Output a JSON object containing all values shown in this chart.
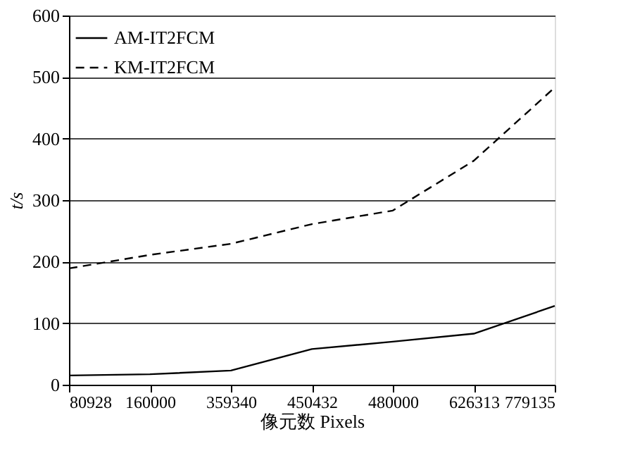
{
  "chart_data": {
    "type": "line",
    "xlabel": "像元数 Pixels",
    "ylabel": "t/s",
    "categories": [
      "80928",
      "160000",
      "359340",
      "450432",
      "480000",
      "626313",
      "779135"
    ],
    "series": [
      {
        "name": "AM-IT2FCM",
        "color": "#000000",
        "line_style": "solid",
        "values": [
          15,
          17,
          23,
          58,
          70,
          83,
          128
        ]
      },
      {
        "name": "KM-IT2FCM",
        "color": "#000000",
        "line_style": "dashed",
        "values": [
          189,
          211,
          229,
          261,
          283,
          364,
          483
        ]
      }
    ],
    "ylim": [
      0,
      600
    ],
    "yticks": [
      0,
      100,
      200,
      300,
      400,
      500,
      600
    ],
    "grid": "y",
    "legend": "top left",
    "marker": "none"
  }
}
